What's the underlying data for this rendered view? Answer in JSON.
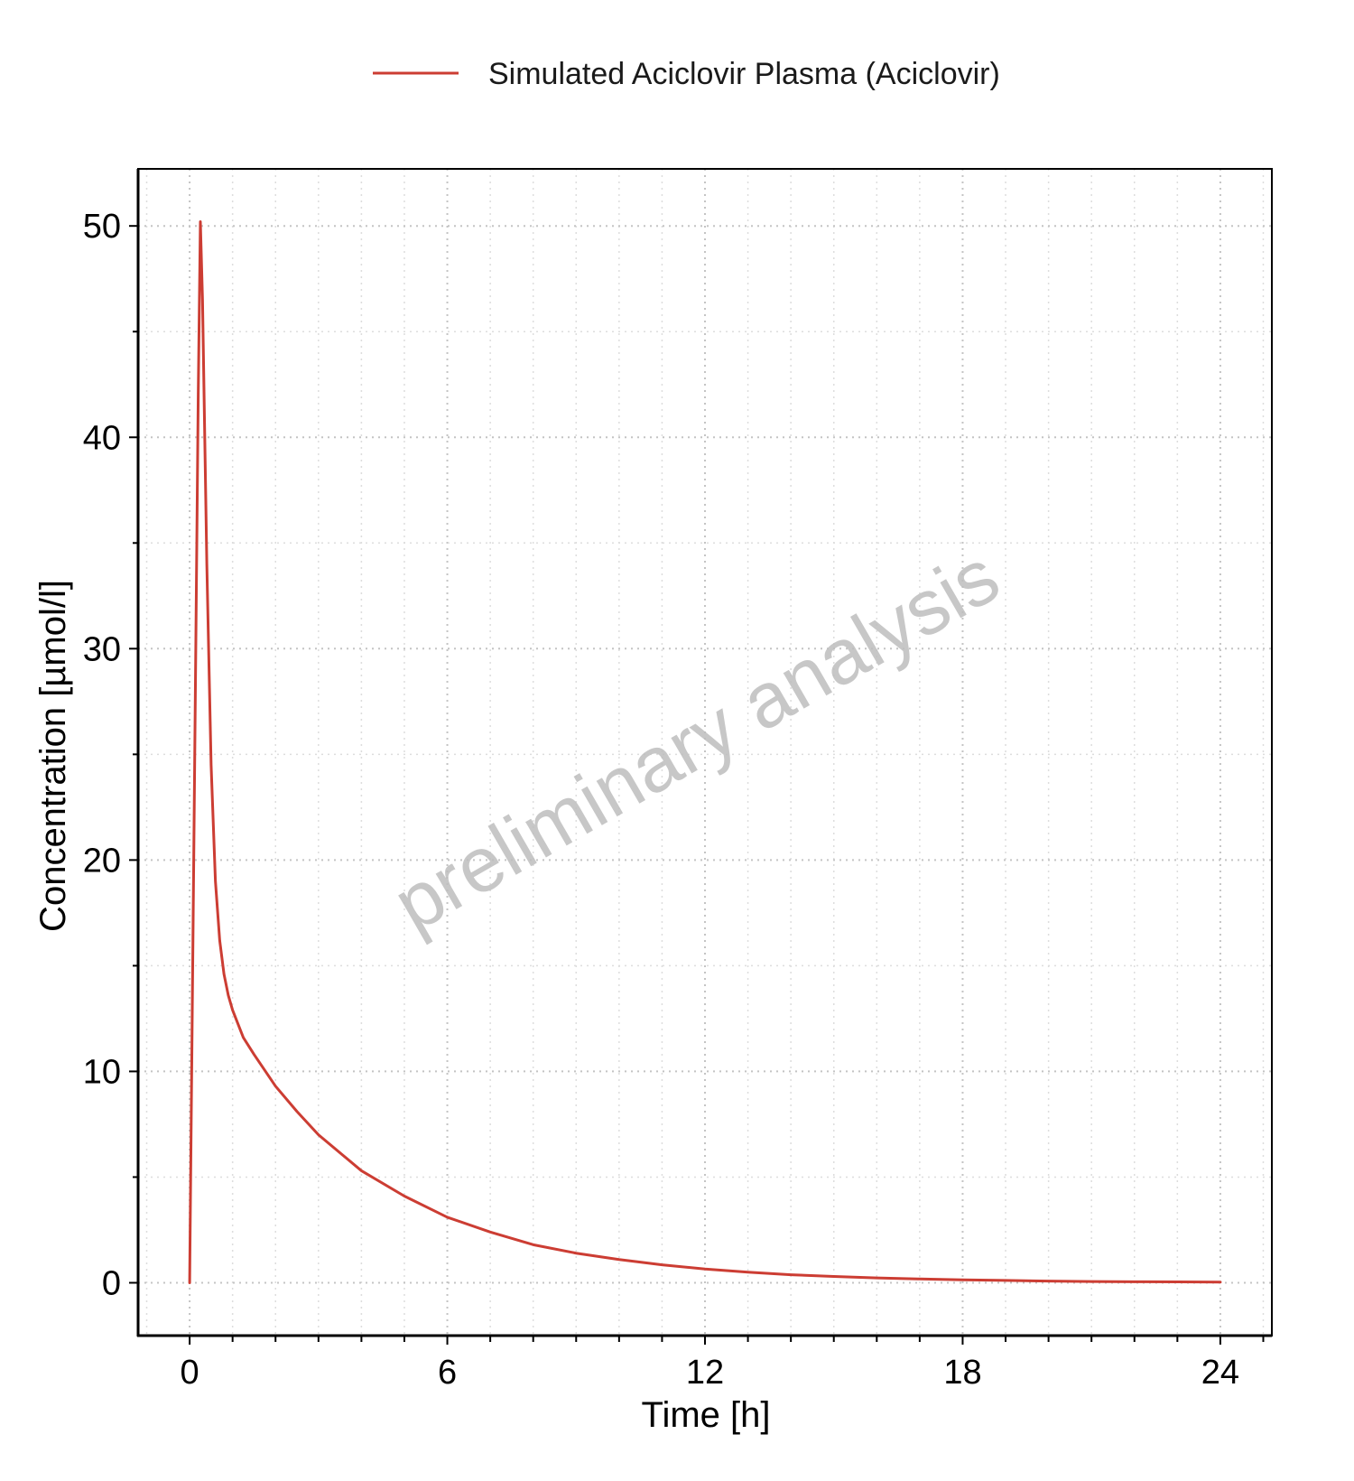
{
  "chart_data": {
    "type": "line",
    "xlabel": "Time [h]",
    "ylabel": "Concentration [µmol/l]",
    "xlim": [
      -1.2,
      25.2
    ],
    "ylim": [
      -2.5,
      52.7
    ],
    "x_ticks": [
      0,
      6,
      12,
      18,
      24
    ],
    "y_ticks": [
      0,
      10,
      20,
      30,
      40,
      50
    ],
    "x_minor_step": 1,
    "y_minor_step": 5,
    "grid": true,
    "legend_position": "top-center",
    "watermark": "preliminary analysis",
    "series": [
      {
        "name": "Simulated Aciclovir Plasma (Aciclovir)",
        "color": "#cc3d33",
        "x": [
          0,
          0.05,
          0.1,
          0.15,
          0.2,
          0.25,
          0.3,
          0.4,
          0.5,
          0.6,
          0.7,
          0.8,
          0.9,
          1.0,
          1.25,
          1.5,
          2,
          2.5,
          3,
          4,
          5,
          6,
          7,
          8,
          9,
          10,
          11,
          12,
          13,
          14,
          15,
          16,
          17,
          18,
          19,
          20,
          21,
          22,
          23,
          24
        ],
        "y": [
          0,
          10.5,
          21,
          31.5,
          42,
          50.2,
          46.5,
          34,
          24.5,
          19,
          16.2,
          14.6,
          13.6,
          12.9,
          11.6,
          10.8,
          9.3,
          8.1,
          7.0,
          5.3,
          4.1,
          3.1,
          2.4,
          1.8,
          1.4,
          1.1,
          0.85,
          0.65,
          0.5,
          0.38,
          0.3,
          0.23,
          0.18,
          0.14,
          0.11,
          0.08,
          0.06,
          0.05,
          0.04,
          0.03
        ]
      }
    ]
  }
}
